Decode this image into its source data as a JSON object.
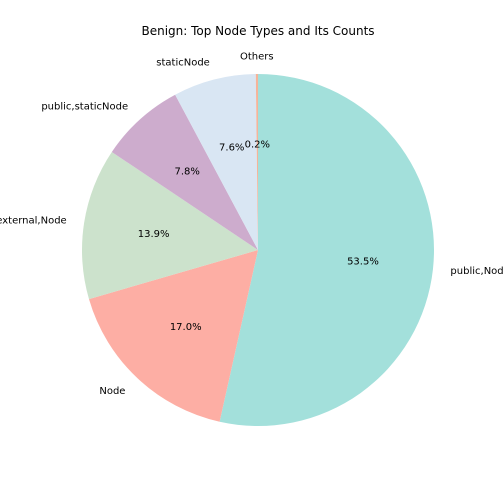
{
  "chart_data": {
    "type": "pie",
    "title": "Benign: Top Node Types and Its Counts",
    "start_angle_deg": 90,
    "direction": "clockwise",
    "slices": [
      {
        "label": "public,Node",
        "percent": 53.5,
        "pct_text": "53.5%",
        "color": "#a3e0db"
      },
      {
        "label": "Node",
        "percent": 17.0,
        "pct_text": "17.0%",
        "color": "#fdaea4"
      },
      {
        "label": "external,Node",
        "percent": 13.9,
        "pct_text": "13.9%",
        "color": "#cce2cc"
      },
      {
        "label": "public,staticNode",
        "percent": 7.8,
        "pct_text": "7.8%",
        "color": "#cdaccd"
      },
      {
        "label": "staticNode",
        "percent": 7.6,
        "pct_text": "7.6%",
        "color": "#d9e6f3"
      },
      {
        "label": "Others",
        "percent": 0.2,
        "pct_text": "0.2%",
        "color": "#f5b49a"
      }
    ]
  }
}
